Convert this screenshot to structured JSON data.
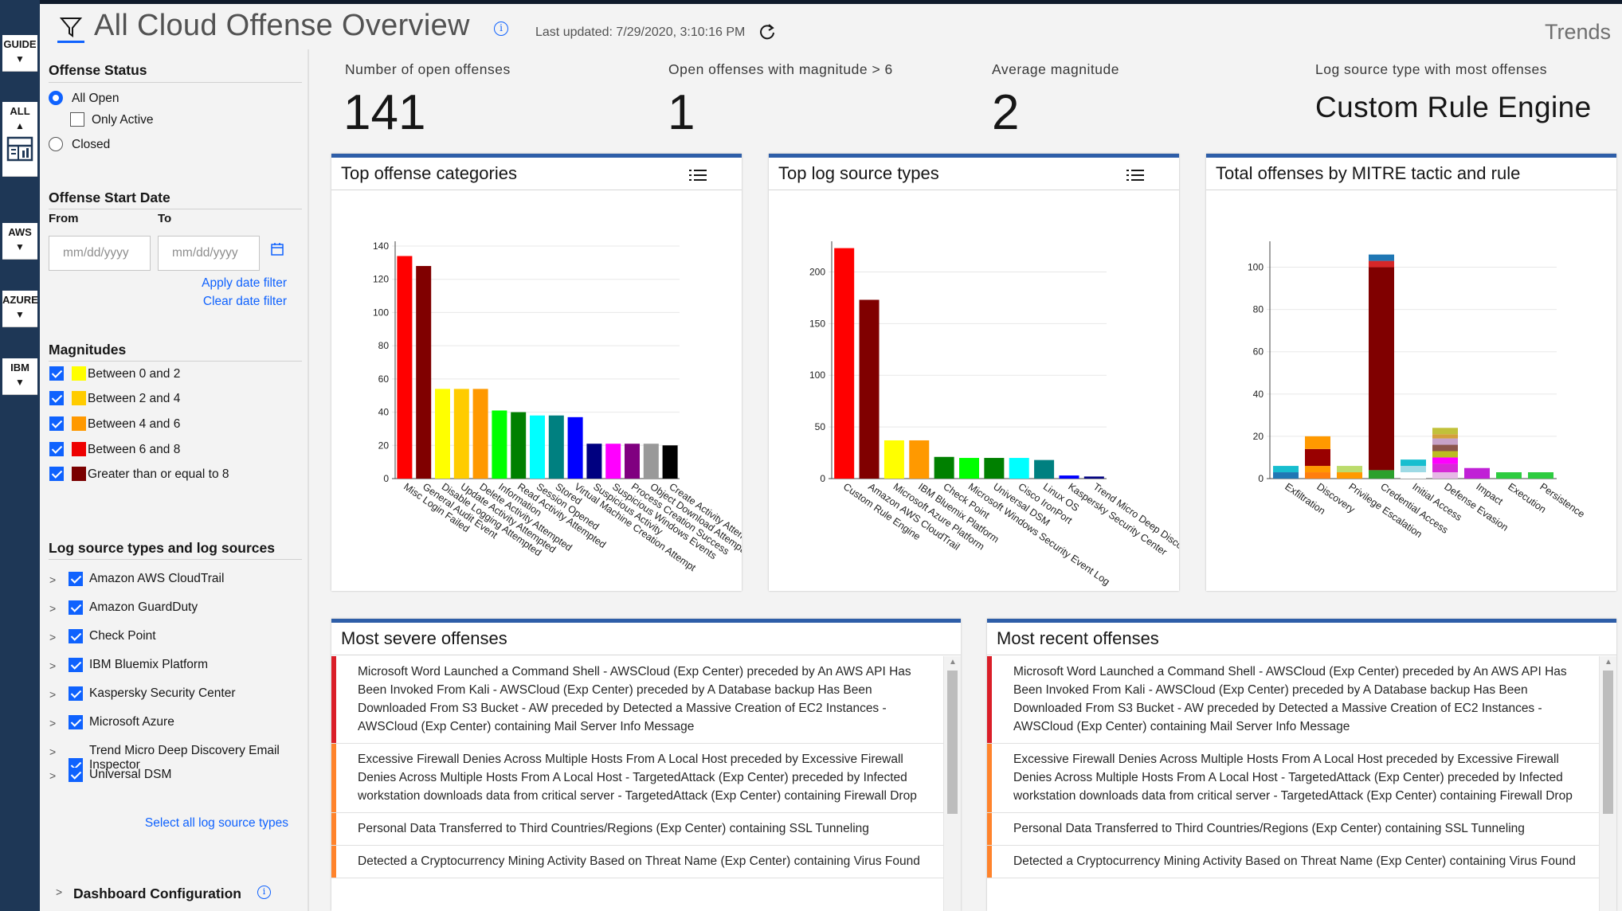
{
  "header": {
    "title": "All Cloud Offense Overview",
    "info_glyph": "i",
    "last_updated": "Last updated: 7/29/2020, 3:10:16 PM",
    "trends_label": "Trends"
  },
  "rail": {
    "items": [
      {
        "label": "GUIDE"
      },
      {
        "label": "ALL"
      },
      {
        "label": "AWS"
      },
      {
        "label": "AZURE"
      },
      {
        "label": "IBM"
      }
    ]
  },
  "sidebar": {
    "offense_status": {
      "heading": "Offense Status",
      "all_open": "All Open",
      "only_active": "Only Active",
      "closed": "Closed"
    },
    "date": {
      "heading": "Offense Start Date",
      "from_label": "From",
      "to_label": "To",
      "from_placeholder": "mm/dd/yyyy",
      "to_placeholder": "mm/dd/yyyy",
      "apply_label": "Apply date filter",
      "clear_label": "Clear date filter"
    },
    "magnitudes": {
      "heading": "Magnitudes",
      "items": [
        {
          "label": "Between 0 and 2",
          "color": "#ffff00"
        },
        {
          "label": "Between 2 and 4",
          "color": "#ffcc00"
        },
        {
          "label": "Between 4 and 6",
          "color": "#ff9900"
        },
        {
          "label": "Between 6 and 8",
          "color": "#ee0000"
        },
        {
          "label": "Greater than or equal to 8",
          "color": "#7a0000"
        }
      ]
    },
    "log_sources": {
      "heading": "Log source types and log sources",
      "items": [
        {
          "label": "Amazon AWS CloudTrail"
        },
        {
          "label": "Amazon GuardDuty"
        },
        {
          "label": "Check Point"
        },
        {
          "label": "IBM Bluemix Platform"
        },
        {
          "label": "Kaspersky Security Center"
        },
        {
          "label": "Microsoft Azure"
        },
        {
          "label": "Trend Micro Deep Discovery Email Inspector"
        },
        {
          "label": "Universal DSM"
        }
      ],
      "select_all_label": "Select all log source types"
    },
    "dashboard_config_label": "Dashboard Configuration"
  },
  "kpis": [
    {
      "label": "Number of open offenses",
      "value": "141"
    },
    {
      "label": "Open offenses with magnitude > 6",
      "value": "1"
    },
    {
      "label": "Average magnitude",
      "value": "2"
    },
    {
      "label": "Log source type with most offenses",
      "value": "Custom Rule Engine"
    }
  ],
  "panels": {
    "categories_title": "Top offense categories",
    "log_types_title": "Top log source types",
    "mitre_title": "Total offenses by MITRE tactic and rule",
    "severe_title": "Most severe offenses",
    "recent_title": "Most recent offenses"
  },
  "chart_data": [
    {
      "type": "bar",
      "title": "Top offense categories",
      "ylim": [
        0,
        140
      ],
      "yticks": [
        0,
        20,
        40,
        60,
        80,
        100,
        120,
        140
      ],
      "categories": [
        "Misc Login Failed",
        "General Audit Event",
        "Disable Logging Attempted",
        "Update Activity Attempted",
        "Delete Activity Attempted",
        "Information",
        "Read Activity Attempted",
        "Session Opened",
        "Stored",
        "Virtual Machine Creation Attempt",
        "Suspicious Activity",
        "Suspicious Windows Events",
        "Process Creation Success",
        "Object Download Attempt",
        "Create Activity Attempted"
      ],
      "values": [
        134,
        128,
        54,
        54,
        54,
        41,
        40,
        38,
        38,
        37,
        21,
        21,
        21,
        21,
        20
      ],
      "colors": [
        "#ff0000",
        "#800000",
        "#ffff00",
        "#ffcc00",
        "#ff9900",
        "#00ff00",
        "#008000",
        "#00ffff",
        "#008080",
        "#0000ff",
        "#000080",
        "#ff00ff",
        "#800080",
        "#999999",
        "#000000"
      ]
    },
    {
      "type": "bar",
      "title": "Top log source types",
      "ylim": [
        0,
        225
      ],
      "yticks": [
        0,
        50,
        100,
        150,
        200
      ],
      "categories": [
        "Custom Rule Engine",
        "Amazon AWS CloudTrail",
        "Microsoft Azure Platform",
        "IBM Bluemix Platform",
        "Check Point",
        "Microsoft Windows Security Event Log",
        "Universal DSM",
        "Cisco IronPort",
        "Linux OS",
        "Kaspersky Security Center",
        "Trend Micro Deep Discovery"
      ],
      "values": [
        223,
        173,
        37,
        37,
        21,
        20,
        20,
        20,
        18,
        3,
        2
      ],
      "colors": [
        "#ff0000",
        "#800000",
        "#ffff00",
        "#ff9900",
        "#008000",
        "#00ff00",
        "#008000",
        "#00ffff",
        "#008080",
        "#0000ff",
        "#000080"
      ]
    },
    {
      "type": "bar",
      "stacked": true,
      "title": "Total offenses by MITRE tactic and rule",
      "ylim": [
        0,
        110
      ],
      "yticks": [
        0,
        20,
        40,
        60,
        80,
        100
      ],
      "categories": [
        "Exfiltration",
        "Discovery",
        "Privilege Escalation",
        "Credential Access",
        "Initial Access",
        "Defense Evasion",
        "Impact",
        "Execution",
        "Persistence"
      ],
      "stacks": [
        [
          {
            "value": 3,
            "color": "#1f77b4"
          },
          {
            "value": 3,
            "color": "#17becf"
          }
        ],
        [
          {
            "value": 3,
            "color": "#ff7f0e"
          },
          {
            "value": 3,
            "color": "#ff9900"
          },
          {
            "value": 8,
            "color": "#990000"
          },
          {
            "value": 6,
            "color": "#ff9900"
          }
        ],
        [
          {
            "value": 3,
            "color": "#ff9900"
          },
          {
            "value": 3,
            "color": "#bcdc6c"
          }
        ],
        [
          {
            "value": 4,
            "color": "#2ca02c"
          },
          {
            "value": 96,
            "color": "#800000"
          },
          {
            "value": 3,
            "color": "#d62728"
          },
          {
            "value": 3,
            "color": "#1f77b4"
          }
        ],
        [
          {
            "value": 3,
            "color": "#ffffff"
          },
          {
            "value": 3,
            "color": "#9edae5"
          },
          {
            "value": 3,
            "color": "#17becf"
          }
        ],
        [
          {
            "value": 3,
            "color": "#e6b8e6"
          },
          {
            "value": 4,
            "color": "#d62ad6"
          },
          {
            "value": 3,
            "color": "#ff00ff"
          },
          {
            "value": 3,
            "color": "#bcbd22"
          },
          {
            "value": 3,
            "color": "#8c564b"
          },
          {
            "value": 3,
            "color": "#c7a2c7"
          },
          {
            "value": 2,
            "color": "#d4a03a"
          },
          {
            "value": 3,
            "color": "#c1c13a"
          }
        ],
        [
          {
            "value": 5,
            "color": "#c021d6"
          }
        ],
        [
          {
            "value": 3,
            "color": "#2ecc40"
          }
        ],
        [
          {
            "value": 3,
            "color": "#2ecc40"
          }
        ]
      ]
    }
  ],
  "severe_offenses": [
    {
      "text": "Microsoft Word Launched a Command Shell - AWSCloud (Exp Center) preceded by An AWS API Has Been Invoked From Kali - AWSCloud (Exp Center) preceded by A Database backup Has Been Downloaded From S3 Bucket - AW preceded by Detected a Massive Creation of EC2 Instances - AWSCloud (Exp Center) containing Mail Server Info Message",
      "color": "#da1e28"
    },
    {
      "text": "Excessive Firewall Denies Across Multiple Hosts From A Local Host preceded by Excessive Firewall Denies Across Multiple Hosts From A Local Host - TargetedAttack (Exp Center) preceded by Infected workstation downloads data from critical server - TargetedAttack (Exp Center) containing Firewall Drop",
      "color": "#ff832b"
    },
    {
      "text": "Personal Data Transferred to Third Countries/Regions (Exp Center) containing SSL Tunneling",
      "color": "#ff832b"
    },
    {
      "text": "Detected a Cryptocurrency Mining Activity Based on Threat Name (Exp Center) containing Virus Found",
      "color": "#ff832b"
    }
  ],
  "recent_offenses": [
    {
      "text": "Microsoft Word Launched a Command Shell - AWSCloud (Exp Center) preceded by An AWS API Has Been Invoked From Kali - AWSCloud (Exp Center) preceded by A Database backup Has Been Downloaded From S3 Bucket - AW preceded by Detected a Massive Creation of EC2 Instances - AWSCloud (Exp Center) containing Mail Server Info Message",
      "color": "#da1e28"
    },
    {
      "text": "Excessive Firewall Denies Across Multiple Hosts From A Local Host preceded by Excessive Firewall Denies Across Multiple Hosts From A Local Host - TargetedAttack (Exp Center) preceded by Infected workstation downloads data from critical server - TargetedAttack (Exp Center) containing Firewall Drop",
      "color": "#ff832b"
    },
    {
      "text": "Personal Data Transferred to Third Countries/Regions (Exp Center) containing SSL Tunneling",
      "color": "#ff832b"
    },
    {
      "text": "Detected a Cryptocurrency Mining Activity Based on Threat Name (Exp Center) containing Virus Found",
      "color": "#ff832b"
    }
  ]
}
